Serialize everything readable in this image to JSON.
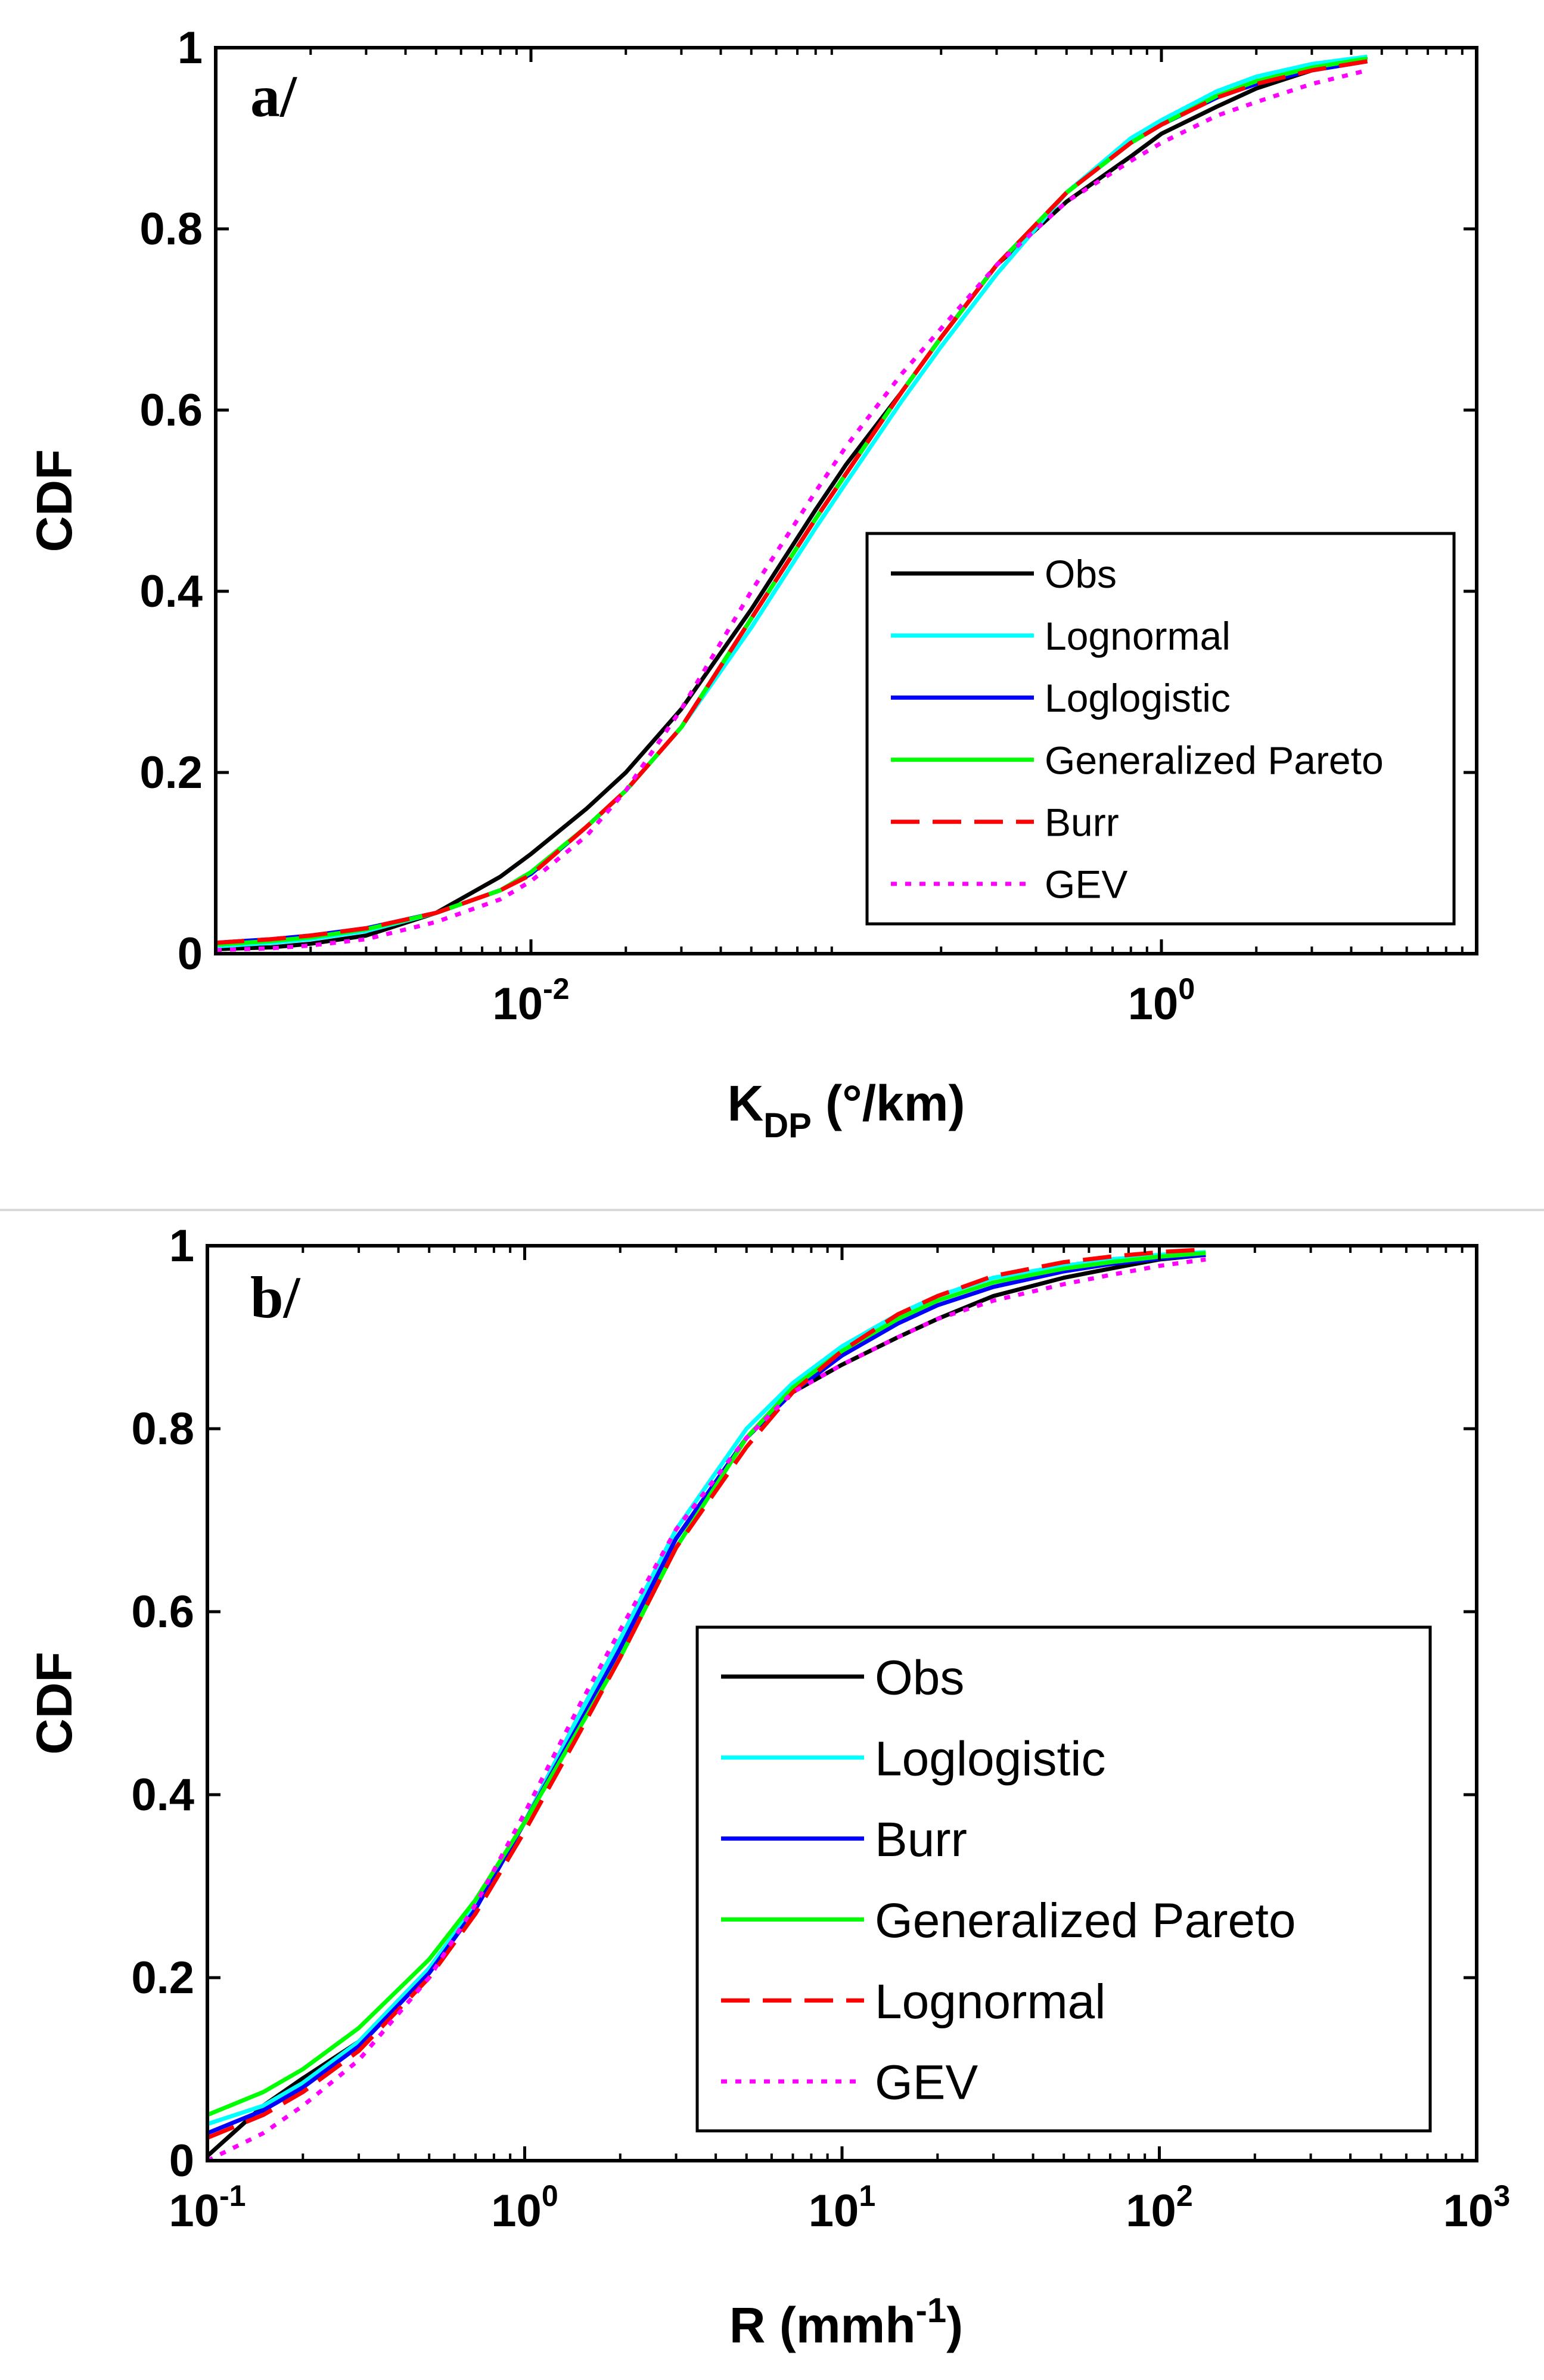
{
  "chart_data": [
    {
      "type": "line",
      "panel_label": "a/",
      "xlabel_main": "K",
      "xlabel_sub": "DP",
      "xlabel_unit": " (°/km)",
      "ylabel": "CDF",
      "xscale": "log",
      "xlim": [
        0.001,
        10
      ],
      "ylim": [
        0,
        1
      ],
      "xticks": [
        {
          "value": 0.01,
          "base": "10",
          "exp": "-2"
        },
        {
          "value": 1,
          "base": "10",
          "exp": "0"
        }
      ],
      "yticks": [
        {
          "value": 0,
          "label": "0"
        },
        {
          "value": 0.2,
          "label": "0.2"
        },
        {
          "value": 0.4,
          "label": "0.4"
        },
        {
          "value": 0.6,
          "label": "0.6"
        },
        {
          "value": 0.8,
          "label": "0.8"
        },
        {
          "value": 1,
          "label": "1"
        }
      ],
      "legend_position": "bottom-right",
      "series": [
        {
          "name": "Obs",
          "color": "#000000",
          "dash": "solid",
          "x": [
            0.001,
            0.0015,
            0.002,
            0.003,
            0.005,
            0.008,
            0.01,
            0.015,
            0.02,
            0.03,
            0.05,
            0.08,
            0.1,
            0.15,
            0.2,
            0.3,
            0.5,
            0.8,
            1,
            1.5,
            2,
            3,
            4.5
          ],
          "y": [
            0.005,
            0.007,
            0.011,
            0.02,
            0.045,
            0.085,
            0.11,
            0.16,
            0.2,
            0.27,
            0.38,
            0.49,
            0.54,
            0.62,
            0.68,
            0.76,
            0.83,
            0.88,
            0.905,
            0.935,
            0.955,
            0.975,
            0.99
          ]
        },
        {
          "name": "Lognormal",
          "color": "#00ffff",
          "dash": "solid",
          "x": [
            0.001,
            0.0015,
            0.002,
            0.003,
            0.005,
            0.008,
            0.01,
            0.015,
            0.02,
            0.03,
            0.05,
            0.08,
            0.1,
            0.15,
            0.2,
            0.3,
            0.5,
            0.8,
            1,
            1.5,
            2,
            3,
            4.5
          ],
          "y": [
            0.008,
            0.012,
            0.016,
            0.025,
            0.045,
            0.07,
            0.09,
            0.14,
            0.18,
            0.25,
            0.36,
            0.47,
            0.52,
            0.61,
            0.67,
            0.75,
            0.84,
            0.9,
            0.92,
            0.952,
            0.968,
            0.982,
            0.99
          ]
        },
        {
          "name": "Loglogistic",
          "color": "#0000ff",
          "dash": "solid",
          "x": [
            0.001,
            0.0015,
            0.002,
            0.003,
            0.005,
            0.008,
            0.01,
            0.015,
            0.02,
            0.03,
            0.05,
            0.08,
            0.1,
            0.15,
            0.2,
            0.3,
            0.5,
            0.8,
            1,
            1.5,
            2,
            3,
            4.5
          ],
          "y": [
            0.012,
            0.016,
            0.02,
            0.028,
            0.045,
            0.07,
            0.088,
            0.14,
            0.18,
            0.25,
            0.37,
            0.48,
            0.53,
            0.62,
            0.68,
            0.76,
            0.84,
            0.895,
            0.915,
            0.945,
            0.96,
            0.975,
            0.985
          ]
        },
        {
          "name": "Generalized Pareto",
          "color": "#00ff00",
          "dash": "solid",
          "x": [
            0.001,
            0.0015,
            0.002,
            0.003,
            0.005,
            0.008,
            0.01,
            0.015,
            0.02,
            0.03,
            0.05,
            0.08,
            0.1,
            0.15,
            0.2,
            0.3,
            0.5,
            0.8,
            1,
            1.5,
            2,
            3,
            4.5
          ],
          "y": [
            0.01,
            0.014,
            0.018,
            0.027,
            0.045,
            0.07,
            0.09,
            0.14,
            0.18,
            0.25,
            0.37,
            0.48,
            0.53,
            0.62,
            0.68,
            0.76,
            0.84,
            0.895,
            0.915,
            0.947,
            0.963,
            0.978,
            0.988
          ]
        },
        {
          "name": "Burr",
          "color": "#ff0000",
          "dash": "dashed",
          "x": [
            0.001,
            0.0015,
            0.002,
            0.003,
            0.005,
            0.008,
            0.01,
            0.015,
            0.02,
            0.03,
            0.05,
            0.08,
            0.1,
            0.15,
            0.2,
            0.3,
            0.5,
            0.8,
            1,
            1.5,
            2,
            3,
            4.5
          ],
          "y": [
            0.012,
            0.016,
            0.02,
            0.028,
            0.045,
            0.07,
            0.087,
            0.14,
            0.18,
            0.25,
            0.37,
            0.48,
            0.53,
            0.62,
            0.68,
            0.76,
            0.84,
            0.895,
            0.915,
            0.945,
            0.96,
            0.975,
            0.985
          ]
        },
        {
          "name": "GEV",
          "color": "#ff00ff",
          "dash": "dotted",
          "x": [
            0.001,
            0.0015,
            0.002,
            0.003,
            0.005,
            0.008,
            0.01,
            0.015,
            0.02,
            0.03,
            0.05,
            0.08,
            0.1,
            0.15,
            0.2,
            0.3,
            0.5,
            0.8,
            1,
            1.5,
            2,
            3,
            4.5
          ],
          "y": [
            0.004,
            0.006,
            0.009,
            0.016,
            0.035,
            0.06,
            0.08,
            0.13,
            0.18,
            0.27,
            0.4,
            0.51,
            0.56,
            0.64,
            0.69,
            0.76,
            0.83,
            0.875,
            0.895,
            0.925,
            0.94,
            0.96,
            0.975
          ]
        }
      ]
    },
    {
      "type": "line",
      "panel_label": "b/",
      "xlabel_main": "R (mmh",
      "xlabel_sup": "-1",
      "xlabel_unit": ")",
      "ylabel": "CDF",
      "xscale": "log",
      "xlim": [
        0.1,
        1000
      ],
      "ylim": [
        0,
        1
      ],
      "xticks": [
        {
          "value": 0.1,
          "base": "10",
          "exp": "-1"
        },
        {
          "value": 1,
          "base": "10",
          "exp": "0"
        },
        {
          "value": 10,
          "base": "10",
          "exp": "1"
        },
        {
          "value": 100,
          "base": "10",
          "exp": "2"
        },
        {
          "value": 1000,
          "base": "10",
          "exp": "3"
        }
      ],
      "yticks": [
        {
          "value": 0,
          "label": "0"
        },
        {
          "value": 0.2,
          "label": "0.2"
        },
        {
          "value": 0.4,
          "label": "0.4"
        },
        {
          "value": 0.6,
          "label": "0.6"
        },
        {
          "value": 0.8,
          "label": "0.8"
        },
        {
          "value": 1,
          "label": "1"
        }
      ],
      "legend_position": "bottom-right",
      "series": [
        {
          "name": "Obs",
          "color": "#000000",
          "dash": "solid",
          "x": [
            0.1,
            0.15,
            0.2,
            0.3,
            0.5,
            0.7,
            1,
            1.5,
            2,
            3,
            5,
            7,
            10,
            15,
            20,
            30,
            50,
            70,
            100,
            140
          ],
          "y": [
            0.005,
            0.06,
            0.09,
            0.13,
            0.21,
            0.28,
            0.37,
            0.49,
            0.57,
            0.68,
            0.79,
            0.84,
            0.87,
            0.9,
            0.92,
            0.945,
            0.965,
            0.975,
            0.985,
            0.99
          ]
        },
        {
          "name": "Loglogistic",
          "color": "#00ffff",
          "dash": "solid",
          "x": [
            0.1,
            0.15,
            0.2,
            0.3,
            0.5,
            0.7,
            1,
            1.5,
            2,
            3,
            5,
            7,
            10,
            15,
            20,
            30,
            50,
            70,
            100,
            140
          ],
          "y": [
            0.04,
            0.06,
            0.085,
            0.13,
            0.21,
            0.28,
            0.37,
            0.49,
            0.57,
            0.69,
            0.8,
            0.85,
            0.89,
            0.925,
            0.945,
            0.965,
            0.978,
            0.985,
            0.99,
            0.993
          ]
        },
        {
          "name": "Burr",
          "color": "#0000ff",
          "dash": "solid",
          "x": [
            0.1,
            0.15,
            0.2,
            0.3,
            0.5,
            0.7,
            1,
            1.5,
            2,
            3,
            5,
            7,
            10,
            15,
            20,
            30,
            50,
            70,
            100,
            140
          ],
          "y": [
            0.03,
            0.055,
            0.08,
            0.125,
            0.205,
            0.275,
            0.37,
            0.48,
            0.56,
            0.68,
            0.79,
            0.84,
            0.88,
            0.915,
            0.935,
            0.955,
            0.972,
            0.98,
            0.986,
            0.99
          ]
        },
        {
          "name": "Generalized Pareto",
          "color": "#00ff00",
          "dash": "solid",
          "x": [
            0.1,
            0.15,
            0.2,
            0.3,
            0.5,
            0.7,
            1,
            1.5,
            2,
            3,
            5,
            7,
            10,
            15,
            20,
            30,
            50,
            70,
            100,
            140
          ],
          "y": [
            0.05,
            0.075,
            0.1,
            0.145,
            0.22,
            0.285,
            0.37,
            0.475,
            0.55,
            0.67,
            0.79,
            0.845,
            0.885,
            0.92,
            0.94,
            0.96,
            0.975,
            0.982,
            0.988,
            0.992
          ]
        },
        {
          "name": "Lognormal",
          "color": "#ff0000",
          "dash": "dashed",
          "x": [
            0.1,
            0.15,
            0.2,
            0.3,
            0.5,
            0.7,
            1,
            1.5,
            2,
            3,
            5,
            7,
            10,
            15,
            20,
            30,
            50,
            70,
            100,
            140
          ],
          "y": [
            0.025,
            0.05,
            0.075,
            0.12,
            0.2,
            0.27,
            0.36,
            0.47,
            0.55,
            0.67,
            0.78,
            0.84,
            0.885,
            0.925,
            0.945,
            0.967,
            0.982,
            0.988,
            0.993,
            0.996
          ]
        },
        {
          "name": "GEV",
          "color": "#ff00ff",
          "dash": "dotted",
          "x": [
            0.1,
            0.15,
            0.2,
            0.3,
            0.5,
            0.7,
            1,
            1.5,
            2,
            3,
            5,
            7,
            10,
            15,
            20,
            30,
            50,
            70,
            100,
            140
          ],
          "y": [
            0.0,
            0.03,
            0.06,
            0.11,
            0.2,
            0.28,
            0.38,
            0.5,
            0.58,
            0.69,
            0.79,
            0.84,
            0.87,
            0.9,
            0.92,
            0.94,
            0.958,
            0.968,
            0.978,
            0.985
          ]
        }
      ]
    }
  ]
}
